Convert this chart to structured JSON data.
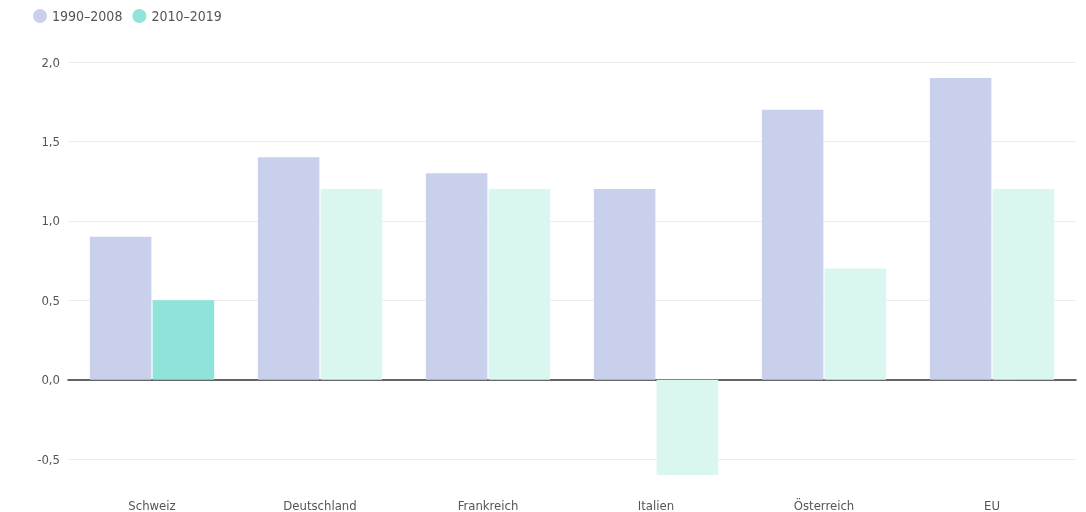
{
  "chart_data": {
    "type": "bar",
    "categories": [
      "Schweiz",
      "Deutschland",
      "Frankreich",
      "Italien",
      "Österreich",
      "EU"
    ],
    "series": [
      {
        "name": "1990–2008",
        "color": "#c8d0ec",
        "values": [
          0.9,
          1.4,
          1.3,
          1.2,
          1.7,
          1.9
        ]
      },
      {
        "name": "2010–2019",
        "color": "#8fe3d9",
        "colors": [
          "#8fe3d9",
          "#d9f6f1",
          "#d9f6f1",
          "#d9f6f1",
          "#d9f6f1",
          "#d9f6f1"
        ],
        "values": [
          0.5,
          1.2,
          1.2,
          -0.6,
          0.7,
          1.2
        ]
      }
    ],
    "ylim": [
      -0.6,
      2.0
    ],
    "yticks": [
      {
        "value": -0.5,
        "label": "-0,5"
      },
      {
        "value": 0,
        "label": "0,0"
      },
      {
        "value": 0.5,
        "label": "0,5"
      },
      {
        "value": 1,
        "label": "1,0"
      },
      {
        "value": 1.5,
        "label": "1,5"
      },
      {
        "value": 2,
        "label": "2,0"
      }
    ],
    "grid": "y",
    "legend": "top left"
  }
}
